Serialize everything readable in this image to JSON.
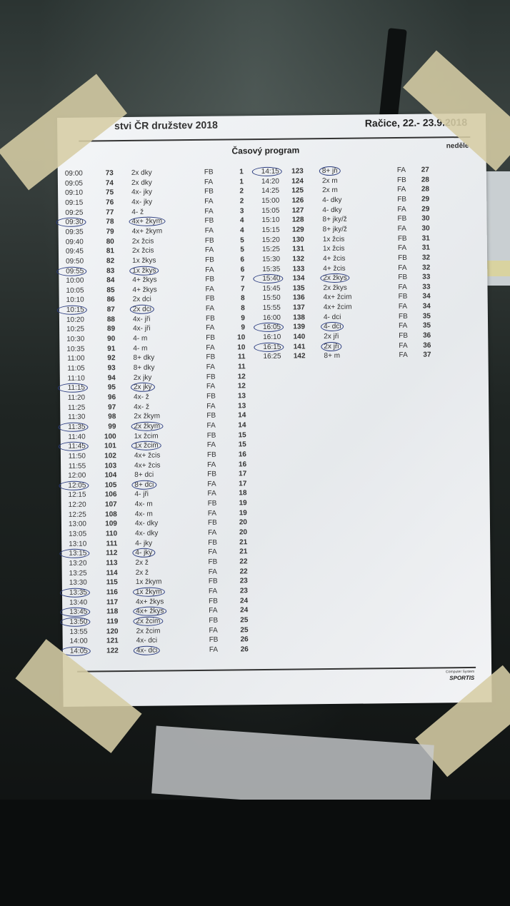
{
  "header": {
    "event_title": "stvi ČR družstev 2018",
    "location_date": "Račice, 22.- 23.9.2018"
  },
  "schedule_title": "Časový program",
  "day": "neděle",
  "footer": {
    "system": "Computer System",
    "logo": "SPORTIS"
  },
  "colors": {
    "pen_circle": "#2c3d80",
    "paper": "#eef0f2",
    "tape": "#d6cda5"
  },
  "left_rows": [
    {
      "time": "09:00",
      "no": "73",
      "event": "2x dky",
      "lane": "FB",
      "race": "1",
      "circled": false
    },
    {
      "time": "09:05",
      "no": "74",
      "event": "2x dky",
      "lane": "FA",
      "race": "1",
      "circled": false
    },
    {
      "time": "09:10",
      "no": "75",
      "event": "4x- jky",
      "lane": "FB",
      "race": "2",
      "circled": false
    },
    {
      "time": "09:15",
      "no": "76",
      "event": "4x- jky",
      "lane": "FA",
      "race": "2",
      "circled": false
    },
    {
      "time": "09:25",
      "no": "77",
      "event": "4- ž",
      "lane": "FA",
      "race": "3",
      "circled": false
    },
    {
      "time": "09:30",
      "no": "78",
      "event": "4x+ žkym",
      "lane": "FB",
      "race": "4",
      "circled": true
    },
    {
      "time": "09:35",
      "no": "79",
      "event": "4x+ žkym",
      "lane": "FA",
      "race": "4",
      "circled": false
    },
    {
      "time": "09:40",
      "no": "80",
      "event": "2x žcis",
      "lane": "FB",
      "race": "5",
      "circled": false
    },
    {
      "time": "09:45",
      "no": "81",
      "event": "2x žcis",
      "lane": "FA",
      "race": "5",
      "circled": false
    },
    {
      "time": "09:50",
      "no": "82",
      "event": "1x žkys",
      "lane": "FB",
      "race": "6",
      "circled": false
    },
    {
      "time": "09:55",
      "no": "83",
      "event": "1x žkys",
      "lane": "FA",
      "race": "6",
      "circled": true
    },
    {
      "time": "10:00",
      "no": "84",
      "event": "4+ žkys",
      "lane": "FB",
      "race": "7",
      "circled": false
    },
    {
      "time": "10:05",
      "no": "85",
      "event": "4+ žkys",
      "lane": "FA",
      "race": "7",
      "circled": false
    },
    {
      "time": "10:10",
      "no": "86",
      "event": "2x dci",
      "lane": "FB",
      "race": "8",
      "circled": false
    },
    {
      "time": "10:15",
      "no": "87",
      "event": "2x dci",
      "lane": "FA",
      "race": "8",
      "circled": true
    },
    {
      "time": "10:20",
      "no": "88",
      "event": "4x- jři",
      "lane": "FB",
      "race": "9",
      "circled": false
    },
    {
      "time": "10:25",
      "no": "89",
      "event": "4x- jři",
      "lane": "FA",
      "race": "9",
      "circled": false
    },
    {
      "time": "10:30",
      "no": "90",
      "event": "4- m",
      "lane": "FB",
      "race": "10",
      "circled": false
    },
    {
      "time": "10:35",
      "no": "91",
      "event": "4- m",
      "lane": "FA",
      "race": "10",
      "circled": false
    },
    {
      "time": "11:00",
      "no": "92",
      "event": "8+ dky",
      "lane": "FB",
      "race": "11",
      "circled": false
    },
    {
      "time": "11:05",
      "no": "93",
      "event": "8+ dky",
      "lane": "FA",
      "race": "11",
      "circled": false
    },
    {
      "time": "11:10",
      "no": "94",
      "event": "2x jky",
      "lane": "FB",
      "race": "12",
      "circled": false
    },
    {
      "time": "11:15",
      "no": "95",
      "event": "2x jky",
      "lane": "FA",
      "race": "12",
      "circled": true
    },
    {
      "time": "11:20",
      "no": "96",
      "event": "4x- ž",
      "lane": "FB",
      "race": "13",
      "circled": false
    },
    {
      "time": "11:25",
      "no": "97",
      "event": "4x- ž",
      "lane": "FA",
      "race": "13",
      "circled": false
    },
    {
      "time": "11:30",
      "no": "98",
      "event": "2x žkym",
      "lane": "FB",
      "race": "14",
      "circled": false
    },
    {
      "time": "11:35",
      "no": "99",
      "event": "2x žkym",
      "lane": "FA",
      "race": "14",
      "circled": true
    },
    {
      "time": "11:40",
      "no": "100",
      "event": "1x žcim",
      "lane": "FB",
      "race": "15",
      "circled": false
    },
    {
      "time": "11:45",
      "no": "101",
      "event": "1x žcim",
      "lane": "FA",
      "race": "15",
      "circled": true
    },
    {
      "time": "11:50",
      "no": "102",
      "event": "4x+ žcis",
      "lane": "FB",
      "race": "16",
      "circled": false
    },
    {
      "time": "11:55",
      "no": "103",
      "event": "4x+ žcis",
      "lane": "FA",
      "race": "16",
      "circled": false
    },
    {
      "time": "12:00",
      "no": "104",
      "event": "8+ dci",
      "lane": "FB",
      "race": "17",
      "circled": false
    },
    {
      "time": "12:05",
      "no": "105",
      "event": "8+ dci",
      "lane": "FA",
      "race": "17",
      "circled": true
    },
    {
      "time": "12:15",
      "no": "106",
      "event": "4- jři",
      "lane": "FA",
      "race": "18",
      "circled": false
    },
    {
      "time": "12:20",
      "no": "107",
      "event": "4x- m",
      "lane": "FB",
      "race": "19",
      "circled": false
    },
    {
      "time": "12:25",
      "no": "108",
      "event": "4x- m",
      "lane": "FA",
      "race": "19",
      "circled": false
    },
    {
      "time": "13:00",
      "no": "109",
      "event": "4x- dky",
      "lane": "FB",
      "race": "20",
      "circled": false
    },
    {
      "time": "13:05",
      "no": "110",
      "event": "4x- dky",
      "lane": "FA",
      "race": "20",
      "circled": false
    },
    {
      "time": "13:10",
      "no": "111",
      "event": "4- jky",
      "lane": "FB",
      "race": "21",
      "circled": false
    },
    {
      "time": "13:15",
      "no": "112",
      "event": "4- jky",
      "lane": "FA",
      "race": "21",
      "circled": true
    },
    {
      "time": "13:20",
      "no": "113",
      "event": "2x ž",
      "lane": "FB",
      "race": "22",
      "circled": false
    },
    {
      "time": "13:25",
      "no": "114",
      "event": "2x ž",
      "lane": "FA",
      "race": "22",
      "circled": false
    },
    {
      "time": "13:30",
      "no": "115",
      "event": "1x žkym",
      "lane": "FB",
      "race": "23",
      "circled": false
    },
    {
      "time": "13:35",
      "no": "116",
      "event": "1x žkym",
      "lane": "FA",
      "race": "23",
      "circled": true
    },
    {
      "time": "13:40",
      "no": "117",
      "event": "4x+ žkys",
      "lane": "FB",
      "race": "24",
      "circled": false
    },
    {
      "time": "13:45",
      "no": "118",
      "event": "4x+ žkys",
      "lane": "FA",
      "race": "24",
      "circled": true
    },
    {
      "time": "13:50",
      "no": "119",
      "event": "2x žcim",
      "lane": "FB",
      "race": "25",
      "circled": true
    },
    {
      "time": "13:55",
      "no": "120",
      "event": "2x žcim",
      "lane": "FA",
      "race": "25",
      "circled": false
    },
    {
      "time": "14:00",
      "no": "121",
      "event": "4x- dci",
      "lane": "FB",
      "race": "26",
      "circled": false
    },
    {
      "time": "14:05",
      "no": "122",
      "event": "4x- dci",
      "lane": "FA",
      "race": "26",
      "circled": true
    }
  ],
  "right_rows": [
    {
      "time": "14:15",
      "no": "123",
      "event": "8+ jři",
      "lane": "FA",
      "race": "27",
      "circled": true
    },
    {
      "time": "14:20",
      "no": "124",
      "event": "2x m",
      "lane": "FB",
      "race": "28",
      "circled": false
    },
    {
      "time": "14:25",
      "no": "125",
      "event": "2x m",
      "lane": "FA",
      "race": "28",
      "circled": false
    },
    {
      "time": "15:00",
      "no": "126",
      "event": "4- dky",
      "lane": "FB",
      "race": "29",
      "circled": false
    },
    {
      "time": "15:05",
      "no": "127",
      "event": "4- dky",
      "lane": "FA",
      "race": "29",
      "circled": false
    },
    {
      "time": "15:10",
      "no": "128",
      "event": "8+ jky/ž",
      "lane": "FB",
      "race": "30",
      "circled": false
    },
    {
      "time": "15:15",
      "no": "129",
      "event": "8+ jky/ž",
      "lane": "FA",
      "race": "30",
      "circled": false
    },
    {
      "time": "15:20",
      "no": "130",
      "event": "1x žcis",
      "lane": "FB",
      "race": "31",
      "circled": false
    },
    {
      "time": "15:25",
      "no": "131",
      "event": "1x žcis",
      "lane": "FA",
      "race": "31",
      "circled": false
    },
    {
      "time": "15:30",
      "no": "132",
      "event": "4+ žcis",
      "lane": "FB",
      "race": "32",
      "circled": false
    },
    {
      "time": "15:35",
      "no": "133",
      "event": "4+ žcis",
      "lane": "FA",
      "race": "32",
      "circled": false
    },
    {
      "time": "15:40",
      "no": "134",
      "event": "2x žkys",
      "lane": "FB",
      "race": "33",
      "circled": true
    },
    {
      "time": "15:45",
      "no": "135",
      "event": "2x žkys",
      "lane": "FA",
      "race": "33",
      "circled": false
    },
    {
      "time": "15:50",
      "no": "136",
      "event": "4x+ žcim",
      "lane": "FB",
      "race": "34",
      "circled": false
    },
    {
      "time": "15:55",
      "no": "137",
      "event": "4x+ žcim",
      "lane": "FA",
      "race": "34",
      "circled": false
    },
    {
      "time": "16:00",
      "no": "138",
      "event": "4- dci",
      "lane": "FB",
      "race": "35",
      "circled": false
    },
    {
      "time": "16:05",
      "no": "139",
      "event": "4- dci",
      "lane": "FA",
      "race": "35",
      "circled": true
    },
    {
      "time": "16:10",
      "no": "140",
      "event": "2x jři",
      "lane": "FB",
      "race": "36",
      "circled": false
    },
    {
      "time": "16:15",
      "no": "141",
      "event": "2x jři",
      "lane": "FA",
      "race": "36",
      "circled": true
    },
    {
      "time": "16:25",
      "no": "142",
      "event": "8+ m",
      "lane": "FA",
      "race": "37",
      "circled": false
    }
  ]
}
